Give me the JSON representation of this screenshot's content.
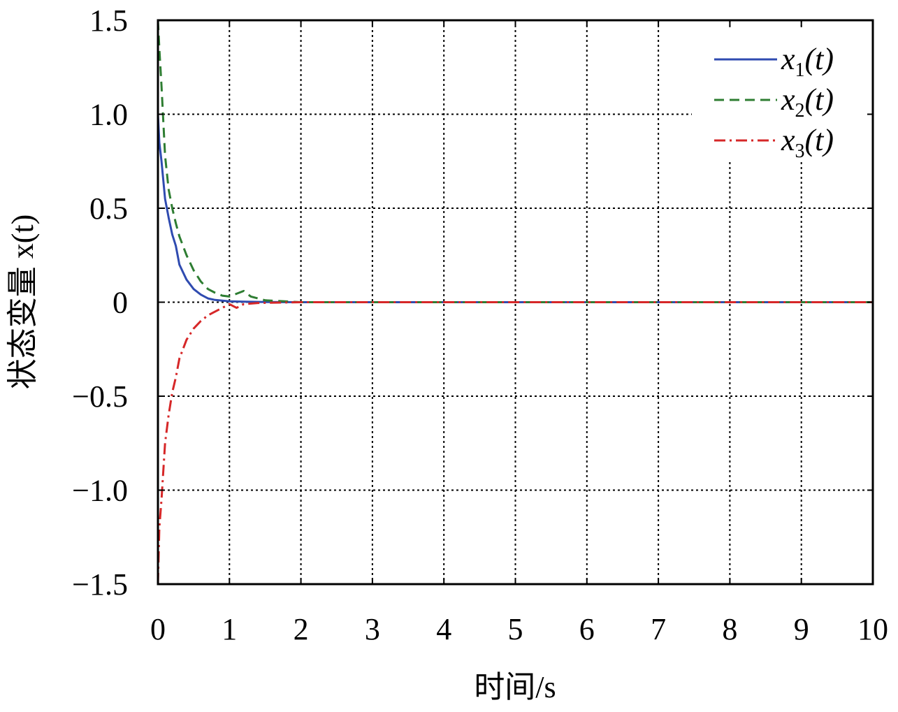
{
  "chart_data": {
    "type": "line",
    "xlabel": "时间/s",
    "ylabel": "状态变量 x(t)",
    "xlim": [
      0,
      10
    ],
    "ylim": [
      -1.5,
      1.5
    ],
    "x_ticks": [
      0,
      1,
      2,
      3,
      4,
      5,
      6,
      7,
      8,
      9,
      10
    ],
    "x_tick_labels": [
      "0",
      "1",
      "2",
      "3",
      "4",
      "5",
      "6",
      "7",
      "8",
      "9",
      "10"
    ],
    "y_ticks": [
      1.5,
      1.0,
      0.5,
      0,
      -0.5,
      -1.0,
      -1.5
    ],
    "y_tick_labels": [
      "1.5",
      "1.0",
      "0.5",
      "0",
      "−0.5",
      "−1.0",
      "−1.5"
    ],
    "grid": true,
    "legend_position": "top-right",
    "series": [
      {
        "name": "x1(t)",
        "color": "#2f4bb0",
        "dash": "solid",
        "x": [
          0,
          0.02,
          0.05,
          0.1,
          0.15,
          0.2,
          0.25,
          0.3,
          0.4,
          0.5,
          0.6,
          0.7,
          0.8,
          0.9,
          1.0,
          1.2,
          1.5,
          2.0,
          3,
          4,
          5,
          6,
          7,
          8,
          9,
          10
        ],
        "values": [
          1.0,
          0.85,
          0.75,
          0.55,
          0.45,
          0.36,
          0.3,
          0.2,
          0.12,
          0.07,
          0.04,
          0.02,
          0.012,
          0.008,
          0.005,
          0.003,
          0.001,
          0,
          0,
          0,
          0,
          0,
          0,
          0,
          0,
          0
        ]
      },
      {
        "name": "x2(t)",
        "color": "#2e7d32",
        "dash": "dashed",
        "x": [
          0,
          0.02,
          0.05,
          0.1,
          0.15,
          0.2,
          0.25,
          0.3,
          0.4,
          0.5,
          0.6,
          0.7,
          0.8,
          0.9,
          1.0,
          1.1,
          1.2,
          1.3,
          1.5,
          2.0,
          3,
          4,
          5,
          6,
          7,
          8,
          9,
          10
        ],
        "values": [
          1.5,
          1.35,
          1.15,
          0.78,
          0.6,
          0.5,
          0.42,
          0.35,
          0.25,
          0.17,
          0.11,
          0.07,
          0.05,
          0.035,
          0.03,
          0.045,
          0.06,
          0.03,
          0.01,
          0,
          0,
          0,
          0,
          0,
          0,
          0,
          0,
          0
        ]
      },
      {
        "name": "x3(t)",
        "color": "#d62728",
        "dash": "dashdot",
        "x": [
          0,
          0.02,
          0.05,
          0.1,
          0.15,
          0.2,
          0.25,
          0.3,
          0.4,
          0.5,
          0.6,
          0.7,
          0.8,
          0.9,
          1.0,
          1.05,
          1.1,
          1.2,
          1.4,
          2.0,
          3,
          4,
          5,
          6,
          7,
          8,
          9,
          10
        ],
        "values": [
          -1.5,
          -1.2,
          -1.05,
          -0.75,
          -0.6,
          -0.48,
          -0.4,
          -0.3,
          -0.2,
          -0.14,
          -0.1,
          -0.07,
          -0.05,
          -0.03,
          -0.01,
          -0.02,
          -0.03,
          -0.01,
          -0.004,
          0,
          0,
          0,
          0,
          0,
          0,
          0,
          0,
          0
        ]
      }
    ]
  }
}
